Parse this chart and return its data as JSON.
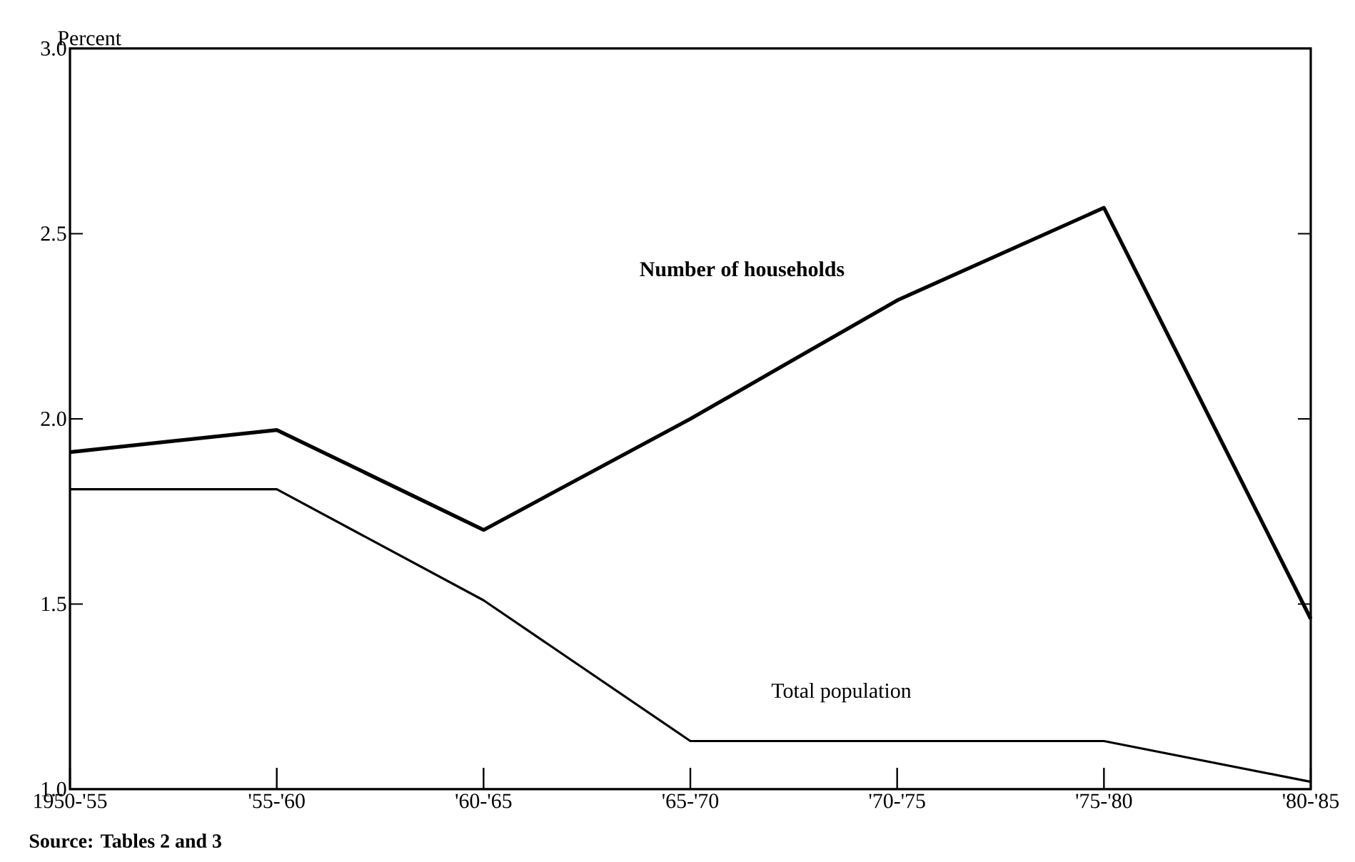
{
  "chart_data": {
    "type": "line",
    "ylabel": "Percent",
    "categories": [
      "1950-'55",
      "'55-'60",
      "'60-'65",
      "'65-'70",
      "'70-'75",
      "'75-'80",
      "'80-'85"
    ],
    "series": [
      {
        "name": "Number of households",
        "color": "#000000",
        "values": [
          1.91,
          1.97,
          1.7,
          2.0,
          2.32,
          2.57,
          1.46
        ]
      },
      {
        "name": "Total population",
        "color": "#000000",
        "values": [
          1.81,
          1.81,
          1.51,
          1.13,
          1.13,
          1.13,
          1.02
        ]
      }
    ],
    "ylim": [
      1.0,
      3.0
    ],
    "yticks": [
      {
        "value": 1.0,
        "label": "1.0"
      },
      {
        "value": 1.5,
        "label": "1.5"
      },
      {
        "value": 2.0,
        "label": "2.0"
      },
      {
        "value": 2.5,
        "label": "2.5"
      },
      {
        "value": 3.0,
        "label": "3.0"
      }
    ],
    "grid": false,
    "legend": false,
    "marker": "none",
    "line_style": "solid",
    "annotations": [
      "Source: Tables 2 and 3"
    ]
  }
}
